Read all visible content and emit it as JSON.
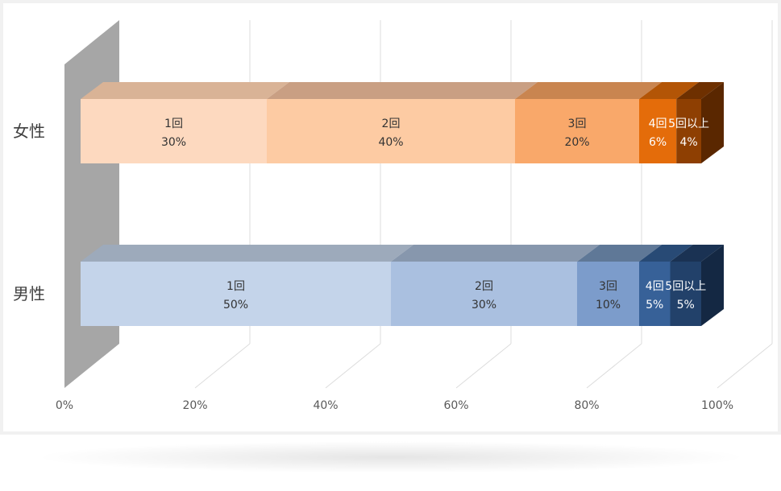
{
  "chart_data": {
    "type": "bar",
    "orientation": "horizontal",
    "stacked": "100%",
    "three_d": true,
    "categories": [
      "女性",
      "男性"
    ],
    "x_ticks": [
      "0%",
      "20%",
      "40%",
      "60%",
      "80%",
      "100%"
    ],
    "xlim": [
      0,
      100
    ],
    "grid": true,
    "legend": "none",
    "rows": [
      {
        "category": "女性",
        "segments": [
          {
            "label": "1回",
            "value": 30,
            "value_label": "30%",
            "color": "#fdd9bf",
            "top": "#d9b396",
            "side": "#c9a688",
            "text": "dark"
          },
          {
            "label": "2回",
            "value": 40,
            "value_label": "40%",
            "color": "#fdcba3",
            "top": "#c99f83",
            "side": "#b98f72",
            "text": "dark"
          },
          {
            "label": "3回",
            "value": 20,
            "value_label": "20%",
            "color": "#f9a86a",
            "top": "#c98550",
            "side": "#b9763f",
            "text": "dark"
          },
          {
            "label": "4回",
            "value": 6,
            "value_label": "6%",
            "color": "#e46c0a",
            "top": "#b35506",
            "side": "#a04a04",
            "text": "light"
          },
          {
            "label": "5回以上",
            "value": 4,
            "value_label": "4%",
            "color": "#8e3f02",
            "top": "#6e3000",
            "side": "#5a2700",
            "text": "light"
          }
        ]
      },
      {
        "category": "男性",
        "segments": [
          {
            "label": "1回",
            "value": 50,
            "value_label": "50%",
            "color": "#c4d4ea",
            "top": "#9daabb",
            "side": "#8e9aab",
            "text": "dark"
          },
          {
            "label": "2回",
            "value": 30,
            "value_label": "30%",
            "color": "#aac0e0",
            "top": "#8797ad",
            "side": "#77879d",
            "text": "dark"
          },
          {
            "label": "3回",
            "value": 10,
            "value_label": "10%",
            "color": "#7c9ccb",
            "top": "#5f7897",
            "side": "#506887",
            "text": "dark"
          },
          {
            "label": "4回",
            "value": 5,
            "value_label": "5%",
            "color": "#376198",
            "top": "#284a75",
            "side": "#203d63",
            "text": "light"
          },
          {
            "label": "5回以上",
            "value": 5,
            "value_label": "5%",
            "color": "#22416a",
            "top": "#1a3253",
            "side": "#142843",
            "text": "light"
          }
        ]
      }
    ]
  }
}
